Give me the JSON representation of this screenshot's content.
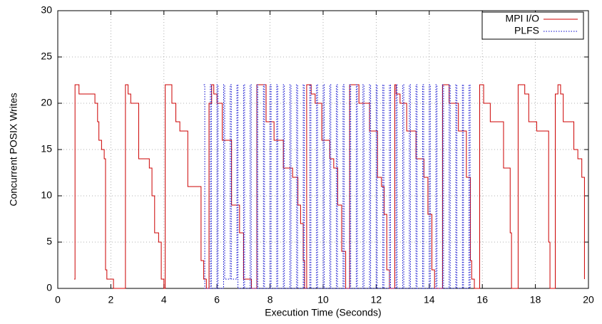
{
  "chart_data": {
    "type": "line",
    "step": "post",
    "xlabel": "Execution Time (Seconds)",
    "ylabel": "Concurrent POSIX Writes",
    "xlim": [
      0,
      20
    ],
    "ylim": [
      0,
      30
    ],
    "xticks": [
      0,
      2,
      4,
      6,
      8,
      10,
      12,
      14,
      16,
      18,
      20
    ],
    "yticks": [
      0,
      5,
      10,
      15,
      20,
      25,
      30
    ],
    "grid": true,
    "legend": "top-right",
    "series": [
      {
        "name": "MPI I/O",
        "color": "#cc0000",
        "style": "solid",
        "x": [
          0.62,
          0.65,
          0.8,
          1.4,
          1.5,
          1.55,
          1.65,
          1.75,
          1.8,
          1.85,
          2.1,
          2.55,
          2.65,
          2.75,
          3.05,
          3.45,
          3.55,
          3.65,
          3.8,
          3.9,
          4.0,
          4.05,
          4.3,
          4.45,
          4.6,
          4.9,
          5.4,
          5.5,
          5.6,
          5.7,
          5.8,
          5.88,
          6.0,
          6.2,
          6.55,
          6.85,
          7.0,
          7.3,
          7.5,
          7.85,
          8.15,
          8.5,
          8.85,
          9.05,
          9.15,
          9.25,
          9.3,
          9.38,
          9.55,
          9.7,
          9.95,
          10.25,
          10.4,
          10.55,
          10.7,
          10.85,
          11.0,
          11.35,
          11.75,
          12.05,
          12.2,
          12.3,
          12.4,
          12.5,
          12.7,
          12.75,
          12.9,
          13.15,
          13.5,
          13.8,
          13.95,
          14.1,
          14.2,
          14.5,
          14.75,
          15.1,
          15.4,
          15.55,
          15.6,
          15.7,
          15.9,
          16.05,
          16.3,
          16.8,
          17.05,
          17.1,
          17.35,
          17.6,
          17.75,
          18.05,
          18.5,
          18.55,
          18.75,
          18.85,
          18.95,
          19.05,
          19.45,
          19.6,
          19.75,
          19.85
        ],
        "values": [
          1,
          22,
          21,
          20,
          18,
          16,
          15,
          14,
          2,
          1,
          0,
          22,
          21,
          20,
          14,
          13,
          10,
          6,
          5,
          1,
          0,
          22,
          20,
          18,
          17,
          11,
          3,
          1,
          0,
          20,
          22,
          21,
          20,
          16,
          9,
          6,
          1,
          0,
          22,
          18,
          16,
          13,
          12,
          9,
          7,
          3,
          0,
          22,
          21,
          20,
          16,
          14,
          13,
          9,
          4,
          0,
          22,
          20,
          17,
          12,
          11,
          8,
          2,
          0,
          22,
          21,
          20,
          17,
          14,
          12,
          8,
          2,
          0,
          22,
          20,
          17,
          12,
          3,
          1,
          0,
          22,
          20,
          18,
          13,
          6,
          0,
          22,
          21,
          18,
          17,
          5,
          0,
          21,
          22,
          21,
          18,
          15,
          14,
          12,
          1
        ]
      },
      {
        "name": "PLFS",
        "color": "#0000cc",
        "style": "dotted",
        "x": [
          5.5,
          5.54,
          5.75,
          5.79,
          6.0,
          6.04,
          6.25,
          6.29,
          6.5,
          6.54,
          6.75,
          6.79,
          7.0,
          7.04,
          7.25,
          7.29,
          7.5,
          7.54,
          7.75,
          7.79,
          8.0,
          8.04,
          8.25,
          8.29,
          8.5,
          8.54,
          8.75,
          8.79,
          9.0,
          9.04,
          9.25,
          9.29,
          9.5,
          9.54,
          9.75,
          9.79,
          10.0,
          10.04,
          10.25,
          10.29,
          10.5,
          10.54,
          10.75,
          10.79,
          11.0,
          11.04,
          11.25,
          11.29,
          11.5,
          11.54,
          11.75,
          11.79,
          12.0,
          12.04,
          12.25,
          12.29,
          12.5,
          12.54,
          12.75,
          12.79,
          13.0,
          13.04,
          13.25,
          13.29,
          13.5,
          13.54,
          13.75,
          13.79,
          14.0,
          14.04,
          14.25,
          14.29,
          14.5,
          14.54,
          14.75,
          14.79,
          15.0,
          15.04,
          15.25,
          15.29,
          15.5,
          15.54
        ],
        "values": [
          22,
          0,
          22,
          0,
          22,
          0,
          22,
          1,
          22,
          1,
          22,
          0,
          22,
          0,
          22,
          0,
          22,
          0,
          22,
          0,
          22,
          0,
          22,
          0,
          22,
          0,
          22,
          0,
          22,
          0,
          22,
          0,
          22,
          0,
          22,
          0,
          22,
          0,
          22,
          0,
          22,
          0,
          22,
          0,
          22,
          0,
          22,
          0,
          22,
          0,
          22,
          0,
          22,
          0,
          22,
          0,
          22,
          0,
          22,
          0,
          22,
          0,
          22,
          0,
          22,
          0,
          22,
          0,
          22,
          0,
          22,
          0,
          22,
          0,
          22,
          0,
          22,
          0,
          22,
          0,
          22,
          0
        ]
      }
    ]
  }
}
